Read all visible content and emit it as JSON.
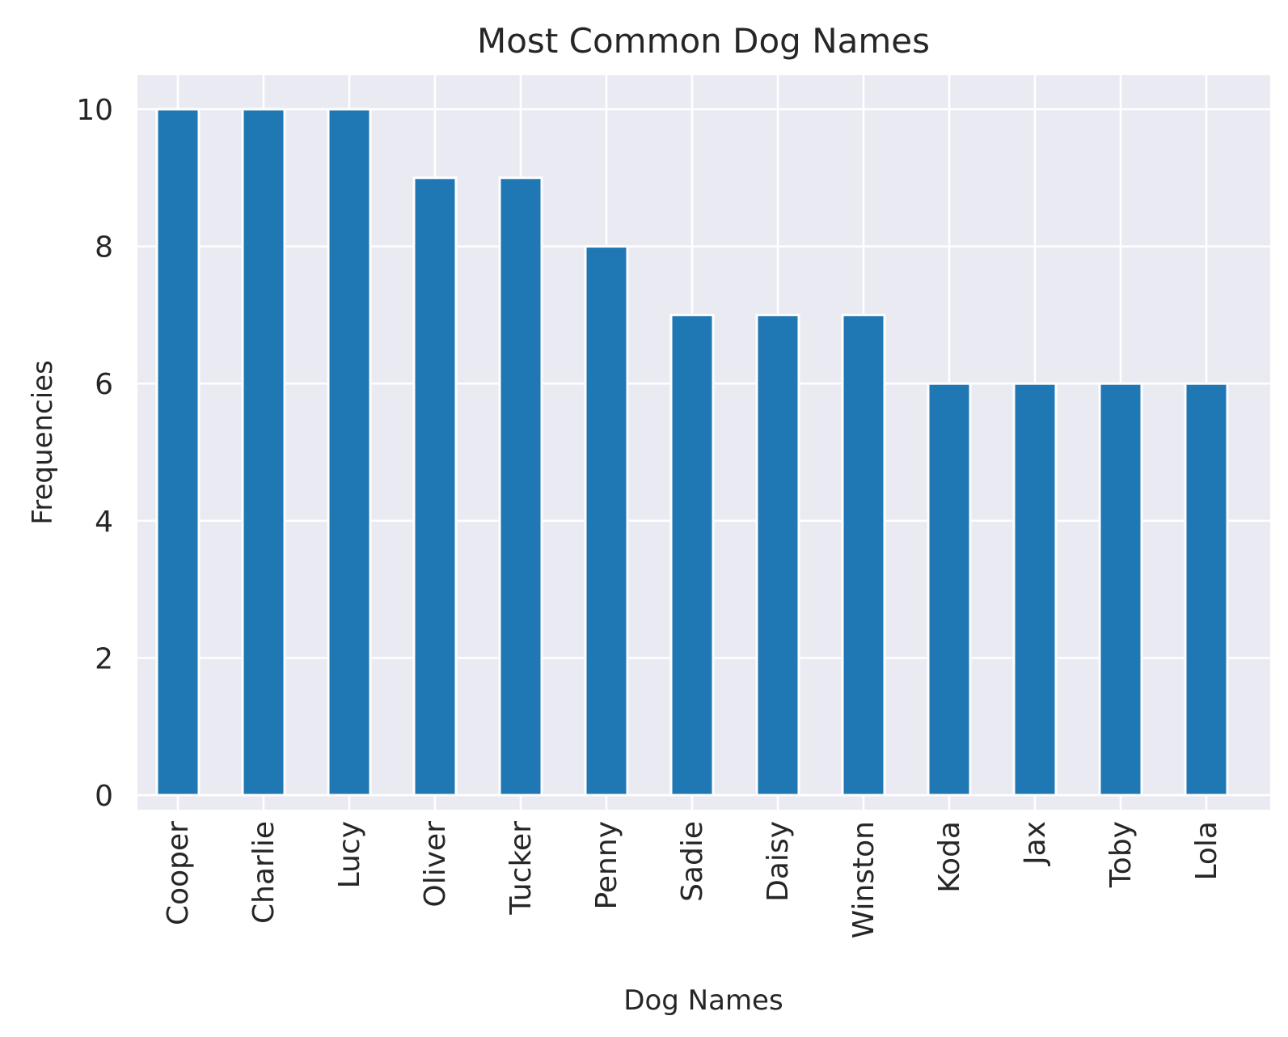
{
  "chart_data": {
    "type": "bar",
    "title": "Most Common Dog Names",
    "xlabel": "Dog Names",
    "ylabel": "Frequencies",
    "categories": [
      "Cooper",
      "Charlie",
      "Lucy",
      "Oliver",
      "Tucker",
      "Penny",
      "Sadie",
      "Daisy",
      "Winston",
      "Koda",
      "Jax",
      "Toby",
      "Lola"
    ],
    "values": [
      10,
      10,
      10,
      9,
      9,
      8,
      7,
      7,
      7,
      6,
      6,
      6,
      6
    ],
    "ylim": [
      0,
      10.5
    ],
    "yticks": [
      0,
      2,
      4,
      6,
      8,
      10
    ],
    "grid": true,
    "legend": "none"
  },
  "colors": {
    "bar": "#1f77b4",
    "plot_background": "#eaeaf2",
    "grid": "#ffffff",
    "text": "#262626"
  }
}
